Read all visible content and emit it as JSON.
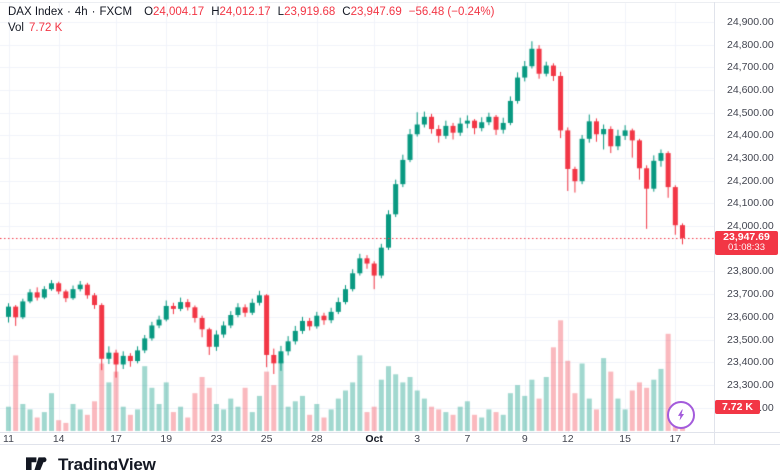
{
  "header": {
    "symbol": "DAX Index",
    "separator": "·",
    "interval": "4h",
    "exchange": "FXCM",
    "ohlc": {
      "o_label": "O",
      "o": "24,004.17",
      "h_label": "H",
      "h": "24,012.17",
      "l_label": "L",
      "l": "23,919.68",
      "c_label": "C",
      "c": "23,947.69",
      "change": "−56.48 (−0.24%)"
    },
    "volume_row": {
      "label": "Vol",
      "value": "7.72 K"
    }
  },
  "price_axis": {
    "labels": [
      {
        "text": "24,900.00",
        "price": 24900
      },
      {
        "text": "24,800.00",
        "price": 24800
      },
      {
        "text": "24,700.00",
        "price": 24700
      },
      {
        "text": "24,600.00",
        "price": 24600
      },
      {
        "text": "24,500.00",
        "price": 24500
      },
      {
        "text": "24,400.00",
        "price": 24400
      },
      {
        "text": "24,300.00",
        "price": 24300
      },
      {
        "text": "24,200.00",
        "price": 24200
      },
      {
        "text": "24,100.00",
        "price": 24100
      },
      {
        "text": "24,000.00",
        "price": 24000
      },
      {
        "text": "23,900.00",
        "price": 23900
      },
      {
        "text": "23,800.00",
        "price": 23800
      },
      {
        "text": "23,700.00",
        "price": 23700
      },
      {
        "text": "23,600.00",
        "price": 23600
      },
      {
        "text": "23,500.00",
        "price": 23500
      },
      {
        "text": "23,400.00",
        "price": 23400
      },
      {
        "text": "23,300.00",
        "price": 23300
      },
      {
        "text": "23,200.00",
        "price": 23200
      }
    ],
    "last_price_tag": {
      "text": "23,947.69",
      "price": 23947.69,
      "countdown": "01:08:33"
    },
    "volume_tag": {
      "text": "7.72 K",
      "value_k": 7.72
    }
  },
  "time_axis": {
    "labels": [
      {
        "text": "11",
        "index": 0
      },
      {
        "text": "14",
        "index": 7
      },
      {
        "text": "17",
        "index": 15
      },
      {
        "text": "19",
        "index": 22
      },
      {
        "text": "23",
        "index": 29
      },
      {
        "text": "25",
        "index": 36
      },
      {
        "text": "28",
        "index": 43
      },
      {
        "text": "Oct",
        "index": 51,
        "emphasis": true
      },
      {
        "text": "3",
        "index": 57
      },
      {
        "text": "7",
        "index": 64
      },
      {
        "text": "9",
        "index": 72
      },
      {
        "text": "12",
        "index": 78
      },
      {
        "text": "15",
        "index": 86
      },
      {
        "text": "17",
        "index": 93
      }
    ]
  },
  "chart_data": {
    "type": "candlestick",
    "symbol": "DAX Index",
    "interval": "4h",
    "exchange": "FXCM",
    "title": "DAX Index · 4h · FXCM",
    "ylim": [
      23095,
      24997
    ],
    "grid": true,
    "last_price": 23947.69,
    "last_volume_k": 7.72,
    "volume_unit": "K",
    "columns": [
      "open",
      "high",
      "low",
      "close",
      "volume_k"
    ],
    "candles": [
      [
        23600,
        23660,
        23575,
        23645,
        9
      ],
      [
        23645,
        23652,
        23560,
        23598,
        28
      ],
      [
        23598,
        23680,
        23590,
        23668,
        10
      ],
      [
        23668,
        23722,
        23660,
        23708,
        8
      ],
      [
        23708,
        23730,
        23672,
        23685,
        5
      ],
      [
        23685,
        23735,
        23678,
        23722,
        7
      ],
      [
        23722,
        23762,
        23715,
        23748,
        14
      ],
      [
        23748,
        23755,
        23700,
        23712,
        4
      ],
      [
        23712,
        23720,
        23665,
        23682,
        3
      ],
      [
        23682,
        23738,
        23675,
        23722,
        10
      ],
      [
        23722,
        23758,
        23712,
        23742,
        8
      ],
      [
        23742,
        23750,
        23680,
        23695,
        6
      ],
      [
        23695,
        23705,
        23635,
        23652,
        11
      ],
      [
        23652,
        23660,
        23365,
        23415,
        25
      ],
      [
        23415,
        23470,
        23392,
        23442,
        18
      ],
      [
        23442,
        23455,
        23332,
        23390,
        22
      ],
      [
        23390,
        23448,
        23370,
        23428,
        9
      ],
      [
        23428,
        23440,
        23380,
        23405,
        6
      ],
      [
        23405,
        23470,
        23395,
        23452,
        8
      ],
      [
        23452,
        23520,
        23440,
        23505,
        24
      ],
      [
        23505,
        23578,
        23495,
        23562,
        16
      ],
      [
        23562,
        23605,
        23550,
        23588,
        10
      ],
      [
        23588,
        23672,
        23580,
        23648,
        18
      ],
      [
        23648,
        23662,
        23612,
        23635,
        7
      ],
      [
        23635,
        23685,
        23625,
        23665,
        9
      ],
      [
        23665,
        23678,
        23628,
        23642,
        5
      ],
      [
        23642,
        23650,
        23575,
        23595,
        14
      ],
      [
        23595,
        23605,
        23510,
        23545,
        20
      ],
      [
        23545,
        23552,
        23432,
        23468,
        16
      ],
      [
        23468,
        23540,
        23450,
        23522,
        10
      ],
      [
        23522,
        23580,
        23508,
        23562,
        8
      ],
      [
        23562,
        23625,
        23550,
        23608,
        12
      ],
      [
        23608,
        23660,
        23598,
        23642,
        9
      ],
      [
        23642,
        23655,
        23600,
        23618,
        16
      ],
      [
        23618,
        23680,
        23608,
        23662,
        7
      ],
      [
        23662,
        23715,
        23650,
        23695,
        13
      ],
      [
        23695,
        23700,
        23378,
        23432,
        22
      ],
      [
        23432,
        23460,
        23348,
        23395,
        17
      ],
      [
        23395,
        23472,
        23362,
        23448,
        26
      ],
      [
        23448,
        23515,
        23430,
        23492,
        9
      ],
      [
        23492,
        23560,
        23478,
        23538,
        11
      ],
      [
        23538,
        23600,
        23525,
        23582,
        13
      ],
      [
        23582,
        23595,
        23540,
        23558,
        6
      ],
      [
        23558,
        23622,
        23548,
        23605,
        10
      ],
      [
        23605,
        23618,
        23565,
        23585,
        5
      ],
      [
        23585,
        23640,
        23572,
        23622,
        8
      ],
      [
        23622,
        23685,
        23612,
        23665,
        12
      ],
      [
        23665,
        23740,
        23655,
        23722,
        15
      ],
      [
        23722,
        23810,
        23712,
        23792,
        18
      ],
      [
        23792,
        23878,
        23782,
        23858,
        28
      ],
      [
        23858,
        23872,
        23812,
        23835,
        7
      ],
      [
        23835,
        23845,
        23722,
        23782,
        9
      ],
      [
        23782,
        23922,
        23770,
        23905,
        19
      ],
      [
        23905,
        24070,
        23895,
        24052,
        24
      ],
      [
        24052,
        24205,
        24040,
        24185,
        21
      ],
      [
        24185,
        24315,
        24172,
        24292,
        18
      ],
      [
        24292,
        24428,
        24282,
        24405,
        20
      ],
      [
        24405,
        24502,
        24395,
        24448,
        15
      ],
      [
        24448,
        24505,
        24435,
        24482,
        12
      ],
      [
        24482,
        24495,
        24408,
        24428,
        9
      ],
      [
        24428,
        24445,
        24368,
        24398,
        8
      ],
      [
        24398,
        24465,
        24385,
        24442,
        7
      ],
      [
        24442,
        24455,
        24382,
        24412,
        6
      ],
      [
        24412,
        24478,
        24398,
        24452,
        9
      ],
      [
        24452,
        24488,
        24432,
        24465,
        11
      ],
      [
        24465,
        24472,
        24405,
        24432,
        6
      ],
      [
        24432,
        24480,
        24418,
        24458,
        5
      ],
      [
        24458,
        24500,
        24445,
        24482,
        8
      ],
      [
        24482,
        24490,
        24402,
        24425,
        7
      ],
      [
        24425,
        24478,
        24408,
        24455,
        6
      ],
      [
        24455,
        24572,
        24445,
        24552,
        14
      ],
      [
        24552,
        24678,
        24540,
        24655,
        17
      ],
      [
        24655,
        24728,
        24638,
        24705,
        13
      ],
      [
        24705,
        24815,
        24695,
        24782,
        19
      ],
      [
        24782,
        24798,
        24650,
        24672,
        12
      ],
      [
        24672,
        24725,
        24660,
        24708,
        20
      ],
      [
        24708,
        24718,
        24640,
        24662,
        31
      ],
      [
        24662,
        24680,
        24388,
        24422,
        41
      ],
      [
        24422,
        24435,
        24155,
        24252,
        26
      ],
      [
        24252,
        24262,
        24148,
        24198,
        14
      ],
      [
        24198,
        24402,
        24185,
        24385,
        25
      ],
      [
        24385,
        24492,
        24368,
        24462,
        12
      ],
      [
        24462,
        24475,
        24372,
        24405,
        8
      ],
      [
        24405,
        24448,
        24338,
        24428,
        27
      ],
      [
        24428,
        24440,
        24322,
        24352,
        22
      ],
      [
        24352,
        24425,
        24335,
        24398,
        12
      ],
      [
        24398,
        24445,
        24380,
        24422,
        8
      ],
      [
        24422,
        24430,
        24302,
        24378,
        15
      ],
      [
        24378,
        24385,
        24205,
        24255,
        18
      ],
      [
        24255,
        24268,
        23988,
        24165,
        16
      ],
      [
        24165,
        24312,
        24152,
        24288,
        19
      ],
      [
        24288,
        24338,
        24262,
        24322,
        23
      ],
      [
        24322,
        24330,
        24125,
        24172,
        36
      ],
      [
        24172,
        24180,
        23962,
        24004,
        8
      ],
      [
        24004.17,
        24012.17,
        23919.68,
        23947.69,
        7.72
      ]
    ]
  },
  "colors": {
    "up": "#089981",
    "down": "#f23645",
    "vol_up": "rgba(8,153,129,0.38)",
    "vol_down": "rgba(242,54,69,0.35)",
    "grid": "#f0f3fa",
    "axis_text": "#434651",
    "text": "#131722",
    "accent_purple": "#a35bdb",
    "price_line": "#f23645"
  },
  "footer": {
    "brand": "TradingView"
  },
  "icons": {
    "lightning": "lightning-bolt"
  }
}
